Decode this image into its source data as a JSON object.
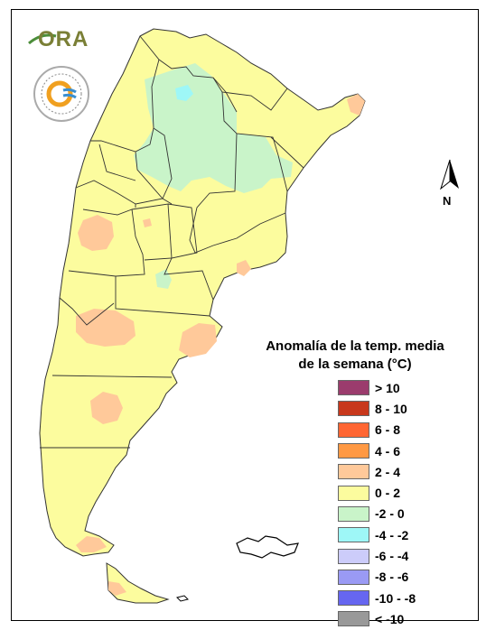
{
  "logo": {
    "name": "ORA",
    "seal_text": "SERVICIO METEOROLÓGICO NACIONAL · ARGENTINA"
  },
  "north_arrow": {
    "label": "N"
  },
  "legend": {
    "title_line1": "Anomalía de la temp. media",
    "title_line2": "de la semana (°C)",
    "classes": [
      {
        "label": "> 10",
        "color": "#9b3c6d"
      },
      {
        "label": "8 - 10",
        "color": "#c8381c"
      },
      {
        "label": "6 - 8",
        "color": "#ff6633"
      },
      {
        "label": "4 - 6",
        "color": "#ff9944"
      },
      {
        "label": "2 - 4",
        "color": "#ffc99a"
      },
      {
        "label": "0 - 2",
        "color": "#fcfc9e"
      },
      {
        "label": "-2 - 0",
        "color": "#c9f4c9"
      },
      {
        "label": "-4 - -2",
        "color": "#9ef7f7"
      },
      {
        "label": "-6 - -4",
        "color": "#ccccfa"
      },
      {
        "label": "-8 - -6",
        "color": "#9a9af4"
      },
      {
        "label": "-10 - -8",
        "color": "#6666f0"
      },
      {
        "label": "< -10",
        "color": "#999999"
      }
    ]
  },
  "map_colors": {
    "land": "#fcfc9e",
    "warm": "#ffc99a",
    "cool": "#c9f4c9",
    "cold": "#9ef7f7",
    "border": "#333333"
  }
}
